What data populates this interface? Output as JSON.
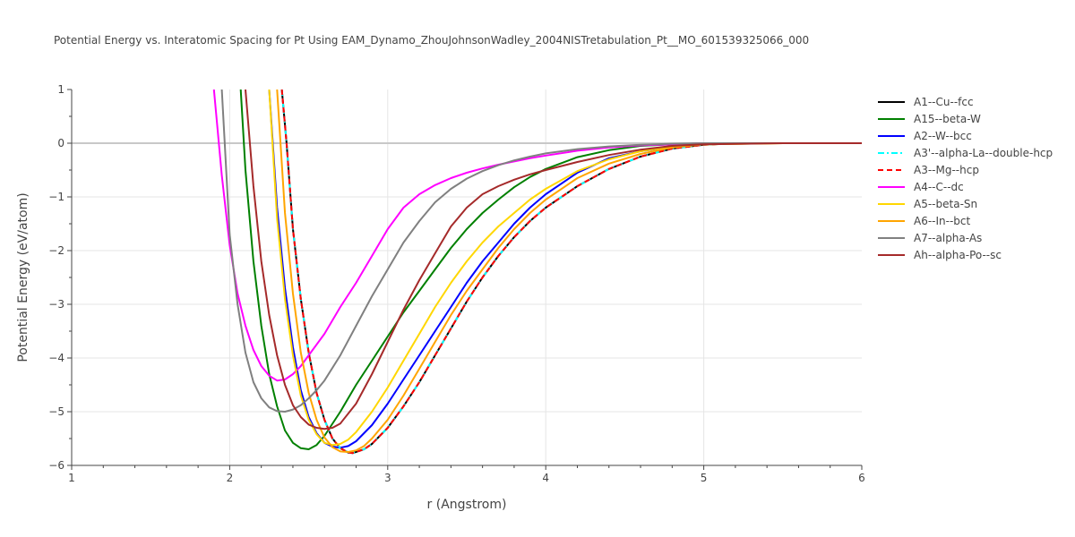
{
  "chart_data": {
    "type": "line",
    "title": "Potential Energy vs. Interatomic Spacing for Pt Using EAM_Dynamo_ZhouJohnsonWadley_2004NISTretabulation_Pt__MO_601539325066_000",
    "xlabel": "r (Angstrom)",
    "ylabel": "Potential Energy (eV/atom)",
    "xlim": [
      1,
      6
    ],
    "ylim": [
      -6,
      1
    ],
    "xticks": [
      "1",
      "2",
      "3",
      "4",
      "5",
      "6"
    ],
    "yticks": [
      "1",
      "0",
      "−1",
      "−2",
      "−3",
      "−4",
      "−5",
      "−6"
    ],
    "grid": true,
    "legend_position": "right",
    "series": [
      {
        "name": "A1--Cu--fcc",
        "color": "#000000",
        "dash": "solid",
        "x": [
          2.33,
          2.36,
          2.4,
          2.45,
          2.5,
          2.55,
          2.6,
          2.65,
          2.7,
          2.75,
          2.78,
          2.85,
          2.9,
          3.0,
          3.1,
          3.2,
          3.3,
          3.4,
          3.5,
          3.6,
          3.7,
          3.8,
          3.9,
          4.0,
          4.2,
          4.4,
          4.6,
          4.8,
          5.0,
          5.2,
          5.5,
          6.0
        ],
        "y": [
          1.0,
          0.0,
          -1.6,
          -2.9,
          -3.9,
          -4.65,
          -5.15,
          -5.5,
          -5.68,
          -5.76,
          -5.77,
          -5.7,
          -5.6,
          -5.3,
          -4.9,
          -4.45,
          -3.95,
          -3.45,
          -2.95,
          -2.5,
          -2.1,
          -1.75,
          -1.45,
          -1.2,
          -0.8,
          -0.48,
          -0.25,
          -0.1,
          -0.03,
          0.0,
          0.0,
          0.0
        ]
      },
      {
        "name": "A15--beta-W",
        "color": "#008000",
        "dash": "solid",
        "x": [
          2.07,
          2.1,
          2.15,
          2.2,
          2.25,
          2.3,
          2.35,
          2.4,
          2.45,
          2.5,
          2.55,
          2.6,
          2.7,
          2.8,
          2.9,
          3.0,
          3.1,
          3.2,
          3.3,
          3.4,
          3.5,
          3.6,
          3.7,
          3.8,
          3.9,
          4.0,
          4.2,
          4.4,
          4.6,
          4.8,
          5.0,
          5.5,
          6.0
        ],
        "y": [
          1.0,
          -0.5,
          -2.2,
          -3.4,
          -4.3,
          -4.9,
          -5.35,
          -5.58,
          -5.68,
          -5.7,
          -5.62,
          -5.45,
          -5.0,
          -4.5,
          -4.05,
          -3.6,
          -3.15,
          -2.75,
          -2.35,
          -1.95,
          -1.6,
          -1.3,
          -1.05,
          -0.82,
          -0.63,
          -0.48,
          -0.26,
          -0.13,
          -0.05,
          -0.02,
          0.0,
          0.0,
          0.0
        ]
      },
      {
        "name": "A2--W--bcc",
        "color": "#0000ff",
        "dash": "solid",
        "x": [
          2.25,
          2.3,
          2.35,
          2.4,
          2.45,
          2.5,
          2.55,
          2.6,
          2.65,
          2.7,
          2.75,
          2.8,
          2.9,
          3.0,
          3.1,
          3.2,
          3.3,
          3.4,
          3.5,
          3.6,
          3.7,
          3.8,
          3.9,
          4.0,
          4.2,
          4.4,
          4.6,
          4.8,
          5.0,
          5.2,
          5.5,
          6.0
        ],
        "y": [
          1.0,
          -1.2,
          -2.7,
          -3.8,
          -4.6,
          -5.1,
          -5.4,
          -5.58,
          -5.65,
          -5.67,
          -5.64,
          -5.55,
          -5.25,
          -4.85,
          -4.4,
          -3.95,
          -3.5,
          -3.05,
          -2.6,
          -2.2,
          -1.85,
          -1.5,
          -1.2,
          -0.95,
          -0.55,
          -0.28,
          -0.15,
          -0.07,
          -0.02,
          0.0,
          0.0,
          0.0
        ]
      },
      {
        "name": "A3'--alpha-La--double-hcp",
        "color": "#00ffff",
        "dash": "dashdot",
        "x": [
          2.33,
          2.36,
          2.4,
          2.45,
          2.5,
          2.55,
          2.6,
          2.65,
          2.7,
          2.75,
          2.78,
          2.85,
          2.9,
          3.0,
          3.1,
          3.2,
          3.3,
          3.4,
          3.5,
          3.6,
          3.7,
          3.8,
          3.9,
          4.0,
          4.2,
          4.4,
          4.6,
          4.8,
          5.0,
          5.2,
          5.5,
          6.0
        ],
        "y": [
          1.0,
          0.0,
          -1.6,
          -2.9,
          -3.9,
          -4.65,
          -5.15,
          -5.5,
          -5.68,
          -5.76,
          -5.77,
          -5.7,
          -5.6,
          -5.3,
          -4.9,
          -4.45,
          -3.95,
          -3.45,
          -2.95,
          -2.5,
          -2.1,
          -1.75,
          -1.45,
          -1.2,
          -0.8,
          -0.48,
          -0.25,
          -0.1,
          -0.03,
          0.0,
          0.0,
          0.0
        ]
      },
      {
        "name": "A3--Mg--hcp",
        "color": "#ff0000",
        "dash": "dash",
        "x": [
          2.33,
          2.36,
          2.4,
          2.45,
          2.5,
          2.55,
          2.6,
          2.65,
          2.7,
          2.75,
          2.78,
          2.85,
          2.9,
          3.0,
          3.1,
          3.2,
          3.3,
          3.4,
          3.5,
          3.6,
          3.7,
          3.8,
          3.9,
          4.0,
          4.2,
          4.4,
          4.6,
          4.8,
          5.0,
          5.2,
          5.5,
          6.0
        ],
        "y": [
          1.0,
          0.0,
          -1.6,
          -2.9,
          -3.9,
          -4.65,
          -5.15,
          -5.5,
          -5.68,
          -5.76,
          -5.77,
          -5.7,
          -5.6,
          -5.3,
          -4.9,
          -4.45,
          -3.95,
          -3.45,
          -2.95,
          -2.5,
          -2.1,
          -1.75,
          -1.45,
          -1.2,
          -0.8,
          -0.48,
          -0.25,
          -0.1,
          -0.03,
          0.0,
          0.0,
          0.0
        ]
      },
      {
        "name": "A4--C--dc",
        "color": "#ff00ff",
        "dash": "solid",
        "x": [
          1.9,
          1.95,
          2.0,
          2.05,
          2.1,
          2.15,
          2.2,
          2.25,
          2.3,
          2.35,
          2.4,
          2.45,
          2.5,
          2.6,
          2.7,
          2.8,
          2.9,
          3.0,
          3.1,
          3.2,
          3.3,
          3.4,
          3.5,
          3.6,
          3.7,
          3.8,
          3.9,
          4.0,
          4.2,
          4.4,
          4.6,
          4.8,
          5.0,
          5.5,
          6.0
        ],
        "y": [
          1.0,
          -0.6,
          -1.9,
          -2.8,
          -3.4,
          -3.85,
          -4.15,
          -4.33,
          -4.42,
          -4.4,
          -4.3,
          -4.15,
          -3.95,
          -3.55,
          -3.05,
          -2.6,
          -2.1,
          -1.6,
          -1.2,
          -0.95,
          -0.78,
          -0.65,
          -0.55,
          -0.47,
          -0.4,
          -0.34,
          -0.28,
          -0.23,
          -0.14,
          -0.08,
          -0.04,
          -0.02,
          0.0,
          0.0,
          0.0
        ]
      },
      {
        "name": "A5--beta-Sn",
        "color": "#ffd700",
        "dash": "solid",
        "x": [
          2.25,
          2.3,
          2.35,
          2.4,
          2.45,
          2.5,
          2.55,
          2.6,
          2.65,
          2.7,
          2.75,
          2.8,
          2.9,
          3.0,
          3.1,
          3.2,
          3.3,
          3.4,
          3.5,
          3.6,
          3.7,
          3.8,
          3.9,
          4.0,
          4.2,
          4.4,
          4.6,
          4.8,
          5.0,
          5.5,
          6.0
        ],
        "y": [
          1.0,
          -1.4,
          -2.9,
          -3.95,
          -4.7,
          -5.15,
          -5.42,
          -5.58,
          -5.62,
          -5.6,
          -5.52,
          -5.38,
          -5.0,
          -4.55,
          -4.05,
          -3.55,
          -3.05,
          -2.6,
          -2.2,
          -1.85,
          -1.55,
          -1.3,
          -1.05,
          -0.85,
          -0.52,
          -0.3,
          -0.15,
          -0.06,
          -0.02,
          0.0,
          0.0
        ]
      },
      {
        "name": "A6--In--bct",
        "color": "#ffa500",
        "dash": "solid",
        "x": [
          2.3,
          2.35,
          2.4,
          2.45,
          2.5,
          2.55,
          2.6,
          2.65,
          2.7,
          2.75,
          2.8,
          2.85,
          2.9,
          3.0,
          3.1,
          3.2,
          3.3,
          3.4,
          3.5,
          3.6,
          3.7,
          3.8,
          3.9,
          4.0,
          4.2,
          4.4,
          4.6,
          4.8,
          5.0,
          5.5,
          6.0
        ],
        "y": [
          1.0,
          -1.3,
          -2.8,
          -3.9,
          -4.65,
          -5.15,
          -5.48,
          -5.66,
          -5.74,
          -5.75,
          -5.72,
          -5.64,
          -5.5,
          -5.15,
          -4.7,
          -4.2,
          -3.7,
          -3.2,
          -2.75,
          -2.35,
          -1.95,
          -1.6,
          -1.3,
          -1.05,
          -0.65,
          -0.38,
          -0.2,
          -0.08,
          -0.02,
          0.0,
          0.0
        ]
      },
      {
        "name": "A7--alpha-As",
        "color": "#808080",
        "dash": "solid",
        "x": [
          1.95,
          2.0,
          2.05,
          2.1,
          2.15,
          2.2,
          2.25,
          2.3,
          2.35,
          2.4,
          2.45,
          2.5,
          2.55,
          2.6,
          2.7,
          2.8,
          2.9,
          3.0,
          3.1,
          3.2,
          3.3,
          3.4,
          3.5,
          3.6,
          3.7,
          3.8,
          3.9,
          4.0,
          4.2,
          4.4,
          4.6,
          4.8,
          5.0,
          5.5,
          6.0
        ],
        "y": [
          1.0,
          -1.7,
          -3.0,
          -3.9,
          -4.45,
          -4.75,
          -4.92,
          -4.99,
          -5.0,
          -4.96,
          -4.88,
          -4.75,
          -4.6,
          -4.42,
          -3.95,
          -3.4,
          -2.85,
          -2.35,
          -1.85,
          -1.45,
          -1.1,
          -0.85,
          -0.66,
          -0.52,
          -0.41,
          -0.32,
          -0.25,
          -0.19,
          -0.11,
          -0.06,
          -0.03,
          -0.01,
          0.0,
          0.0,
          0.0
        ]
      },
      {
        "name": "Ah--alpha-Po--sc",
        "color": "#a52a2a",
        "dash": "solid",
        "x": [
          2.1,
          2.15,
          2.2,
          2.25,
          2.3,
          2.35,
          2.4,
          2.45,
          2.5,
          2.55,
          2.6,
          2.65,
          2.7,
          2.8,
          2.9,
          3.0,
          3.1,
          3.2,
          3.3,
          3.4,
          3.5,
          3.6,
          3.7,
          3.8,
          3.9,
          4.0,
          4.2,
          4.4,
          4.6,
          4.8,
          5.0,
          5.5,
          6.0
        ],
        "y": [
          1.0,
          -0.8,
          -2.2,
          -3.2,
          -3.95,
          -4.5,
          -4.88,
          -5.1,
          -5.24,
          -5.3,
          -5.32,
          -5.3,
          -5.22,
          -4.85,
          -4.3,
          -3.7,
          -3.1,
          -2.55,
          -2.05,
          -1.55,
          -1.2,
          -0.95,
          -0.8,
          -0.68,
          -0.58,
          -0.5,
          -0.35,
          -0.22,
          -0.12,
          -0.05,
          -0.02,
          0.0,
          0.0
        ]
      }
    ]
  }
}
